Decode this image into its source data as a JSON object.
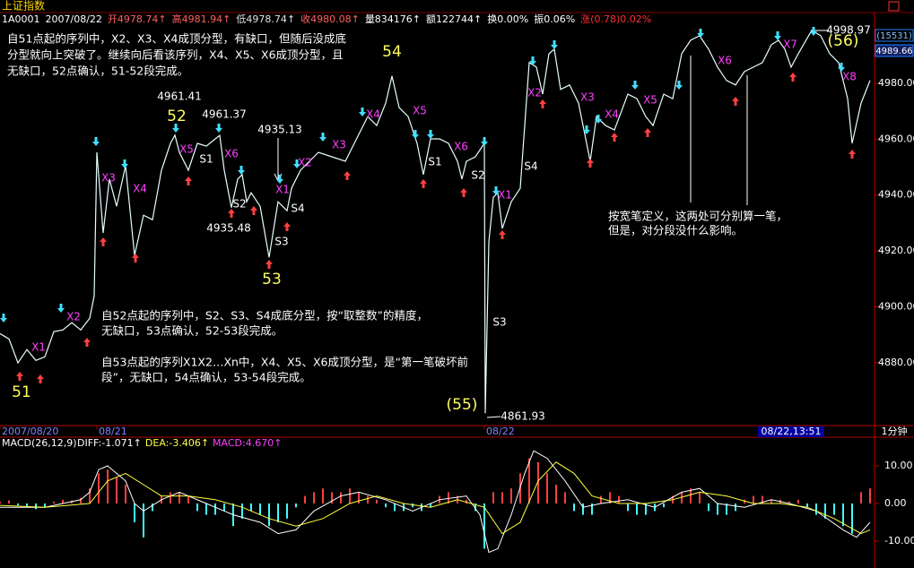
{
  "header": {
    "title": "上证指数",
    "quote": [
      "1A0001",
      "2007/08/22",
      "开4978.74↑",
      "高4981.94↑",
      "低4978.74↑",
      "收4980.08↑",
      "量834176↑",
      "额122744↑",
      "换0.00%",
      "振0.06%",
      "涨(0.78)0.02%"
    ]
  },
  "chart_data": [
    {
      "type": "line",
      "color": "#e8ffff",
      "x": [
        0,
        10,
        20,
        30,
        40,
        50,
        60,
        70,
        80,
        90,
        100,
        105,
        108,
        115,
        122,
        130,
        140,
        150,
        160,
        170,
        180,
        190,
        195,
        200,
        210,
        220,
        230,
        240,
        245,
        250,
        258,
        265,
        270,
        275,
        280,
        290,
        300,
        310,
        320,
        325,
        335,
        345,
        355,
        370,
        385,
        400,
        410,
        420,
        430,
        437,
        445,
        455,
        465,
        472,
        480,
        490,
        500,
        510,
        515,
        520,
        530,
        540,
        541,
        545,
        550,
        555,
        560,
        570,
        580,
        590,
        598,
        605,
        612,
        618,
        625,
        635,
        645,
        658,
        665,
        675,
        685,
        700,
        710,
        720,
        728,
        740,
        750,
        760,
        770,
        780,
        790,
        800,
        810,
        820,
        830,
        840,
        850,
        860,
        868,
        875,
        882,
        890,
        905,
        915,
        925,
        935,
        945,
        950,
        960,
        970
      ],
      "values": [
        4890.4,
        4888.5,
        4879.9,
        4884.7,
        4880.8,
        4882.1,
        4891.1,
        4891.7,
        4894.3,
        4891.7,
        4895.9,
        4903.9,
        4955.3,
        4926.4,
        4945.7,
        4936.0,
        4950.5,
        4918.4,
        4932.8,
        4931.2,
        4948.9,
        4958.5,
        4961.41,
        4955.3,
        4948.9,
        4958.5,
        4957.5,
        4960.1,
        4961.37,
        4948.9,
        4935.48,
        4945.7,
        4947.3,
        4937.6,
        4940.8,
        4936.0,
        4917.7,
        4937.6,
        4934.4,
        4942.4,
        4948.9,
        4952.1,
        4955.3,
        4953.7,
        4952.1,
        4961.7,
        4968.1,
        4964.9,
        4972.9,
        4982.6,
        4971.3,
        4968.1,
        4958.5,
        4947.3,
        4960.1,
        4960.1,
        4958.5,
        4952.1,
        4945.7,
        4952.1,
        4953.7,
        4958.5,
        4861.93,
        4923.2,
        4939.2,
        4940.8,
        4928.0,
        4937.6,
        4942.4,
        4987.4,
        4985.8,
        4976.1,
        4990.6,
        4992.2,
        4977.8,
        4979.4,
        4972.9,
        4952.1,
        4968.1,
        4964.9,
        4963.3,
        4976.1,
        4974.5,
        4968.1,
        4964.9,
        4976.1,
        4974.5,
        4990.6,
        4995.4,
        4997.0,
        4992.2,
        4985.8,
        4981.0,
        4979.4,
        4984.2,
        4985.8,
        4987.4,
        4993.8,
        4995.4,
        4992.2,
        4985.8,
        4990.6,
        4998.97,
        4997.0,
        4990.6,
        4987.4,
        4974.5,
        4958.5,
        4972.9,
        4981.0
      ],
      "xlim": [
        0,
        975
      ],
      "ylim": [
        4857.5,
        5005
      ],
      "xticks": [
        {
          "value": 0,
          "label": "2007/08/20"
        },
        {
          "value": 108,
          "label": "08/21"
        },
        {
          "value": 540,
          "label": "08/22"
        }
      ],
      "yticks": [
        {
          "value": 4880,
          "label": "4880.00"
        },
        {
          "value": 4900,
          "label": "4900.00"
        },
        {
          "value": 4920,
          "label": "4920.00"
        },
        {
          "value": 4940,
          "label": "4940.00"
        },
        {
          "value": 4960,
          "label": "4960.00"
        },
        {
          "value": 4980,
          "label": "4980.00"
        }
      ],
      "grid": false,
      "badges": [
        "(15531)",
        "4989.66"
      ],
      "cursor_time": "08/22,13:51",
      "period": "1分钟",
      "annotations": [
        "51",
        "52",
        "53",
        "54",
        "(55)",
        "(56)",
        "4961.41",
        "4961.37",
        "4935.13",
        "4935.48",
        "4861.93",
        "4998.97",
        "X1",
        "X2",
        "X3",
        "X4",
        "X5",
        "X6",
        "X1",
        "X2",
        "X3",
        "X4",
        "X5",
        "X6",
        "X1",
        "X2",
        "X3",
        "X4",
        "X5",
        "X6",
        "X7",
        "X8",
        "S1",
        "S2",
        "S3",
        "S4",
        "S1",
        "S2",
        "S3",
        "S4"
      ],
      "notes": [
        "自51点起的序列中，X2、X3、X4成顶分型，有缺口，但随后没成底",
        "分型就向上突破了。继续向后看该序列，X4、X5、X6成顶分型，且",
        "无缺口，52点确认，51-52段完成。",
        "自52点起的序列中，S2、S3、S4成底分型，按“取整数”的精度，",
        "无缺口，53点确认，52-53段完成。",
        "自53点起的序列X1X2…Xn中，X4、X5、X6成顶分型，是“第一笔破坏前",
        "段”，无缺口，54点确认，53-54段完成。",
        "按宽笔定义，这两处可分别算一笔，",
        "但是，对分段没什么影响。"
      ]
    },
    {
      "type": "macd",
      "title": "MACD(26,12,9)",
      "readout": [
        "DIFF:-1.071↑",
        "DEA:-3.406↑",
        "MACD:4.670↑"
      ],
      "xlim": [
        0,
        975
      ],
      "ylim": [
        -16.19,
        17.14
      ],
      "yticks": [
        {
          "value": 10,
          "label": "10.00"
        },
        {
          "value": 0,
          "label": "0.00"
        },
        {
          "value": -10,
          "label": "-10.00"
        }
      ],
      "series": [
        {
          "color": "#ff4040",
          "negative_color": "#40ffff",
          "x": [
            0,
            10,
            20,
            30,
            40,
            50,
            60,
            70,
            80,
            90,
            100,
            110,
            120,
            130,
            140,
            150,
            160,
            170,
            180,
            190,
            200,
            210,
            220,
            230,
            240,
            250,
            260,
            270,
            280,
            290,
            300,
            310,
            320,
            330,
            340,
            350,
            360,
            370,
            380,
            390,
            400,
            410,
            420,
            430,
            440,
            450,
            460,
            470,
            480,
            490,
            500,
            510,
            520,
            530,
            540,
            550,
            560,
            570,
            580,
            590,
            600,
            610,
            620,
            630,
            640,
            650,
            660,
            670,
            680,
            690,
            700,
            710,
            720,
            730,
            740,
            750,
            760,
            770,
            780,
            790,
            800,
            810,
            820,
            830,
            840,
            850,
            860,
            870,
            880,
            890,
            900,
            910,
            920,
            930,
            940,
            950,
            960,
            970
          ],
          "values": [
            0.5,
            0.8,
            -0.5,
            -1,
            -1.5,
            -1,
            0.5,
            1,
            0.8,
            1.5,
            4,
            8,
            9,
            7,
            5,
            -5,
            -9,
            -2,
            2,
            3,
            3,
            2,
            -2,
            -3,
            -3,
            -2,
            -6,
            -4,
            -2,
            -3,
            -6,
            -5,
            -4,
            -1,
            2,
            3,
            4,
            3,
            3,
            4,
            3,
            2,
            1,
            -1,
            -2,
            -2,
            -1,
            -2,
            -1,
            2,
            3,
            2,
            1,
            -2,
            -12,
            3,
            3,
            4,
            8,
            12,
            11,
            8,
            5,
            3,
            -2,
            -3,
            -3,
            2,
            3,
            2,
            -2,
            -3,
            -3,
            -2,
            -1,
            2,
            3,
            4,
            3,
            -2,
            -3,
            -3,
            -2,
            1,
            2,
            2,
            1,
            1,
            0.5,
            1,
            -1,
            -3,
            -4,
            -3,
            -6,
            -8,
            3,
            4
          ]
        },
        {
          "color": "#ffffff",
          "x": [
            0,
            50,
            90,
            100,
            110,
            120,
            130,
            140,
            150,
            160,
            180,
            200,
            230,
            260,
            290,
            310,
            330,
            350,
            380,
            400,
            430,
            460,
            490,
            520,
            535,
            545,
            555,
            570,
            585,
            595,
            610,
            630,
            650,
            670,
            700,
            730,
            760,
            780,
            800,
            830,
            860,
            880,
            910,
            940,
            955,
            970
          ],
          "values": [
            -1,
            -1,
            1,
            3,
            9,
            10,
            8,
            6,
            0,
            -2,
            1,
            3,
            0,
            -3,
            -5,
            -8,
            -7,
            -2,
            2,
            3,
            1,
            -2,
            1,
            2,
            -3,
            -13,
            -12,
            -3,
            8,
            14,
            12,
            6,
            -1,
            0,
            1,
            -1,
            3,
            4,
            0,
            -1,
            1,
            0,
            -2,
            -7,
            -9,
            -5
          ]
        },
        {
          "color": "#ffff40",
          "x": [
            0,
            50,
            100,
            120,
            140,
            160,
            180,
            210,
            240,
            270,
            300,
            330,
            360,
            390,
            420,
            450,
            480,
            510,
            540,
            560,
            580,
            600,
            620,
            640,
            660,
            690,
            720,
            750,
            780,
            810,
            840,
            870,
            900,
            930,
            960,
            970
          ],
          "values": [
            -0.5,
            -1,
            0,
            6,
            8,
            5,
            2,
            2,
            1,
            -1,
            -4,
            -6,
            -4,
            0,
            2,
            0,
            -1,
            1,
            -1,
            -8,
            -5,
            6,
            11,
            8,
            2,
            0,
            0,
            1,
            3,
            2,
            0,
            0,
            -1,
            -4,
            -8,
            -7
          ]
        }
      ]
    }
  ]
}
